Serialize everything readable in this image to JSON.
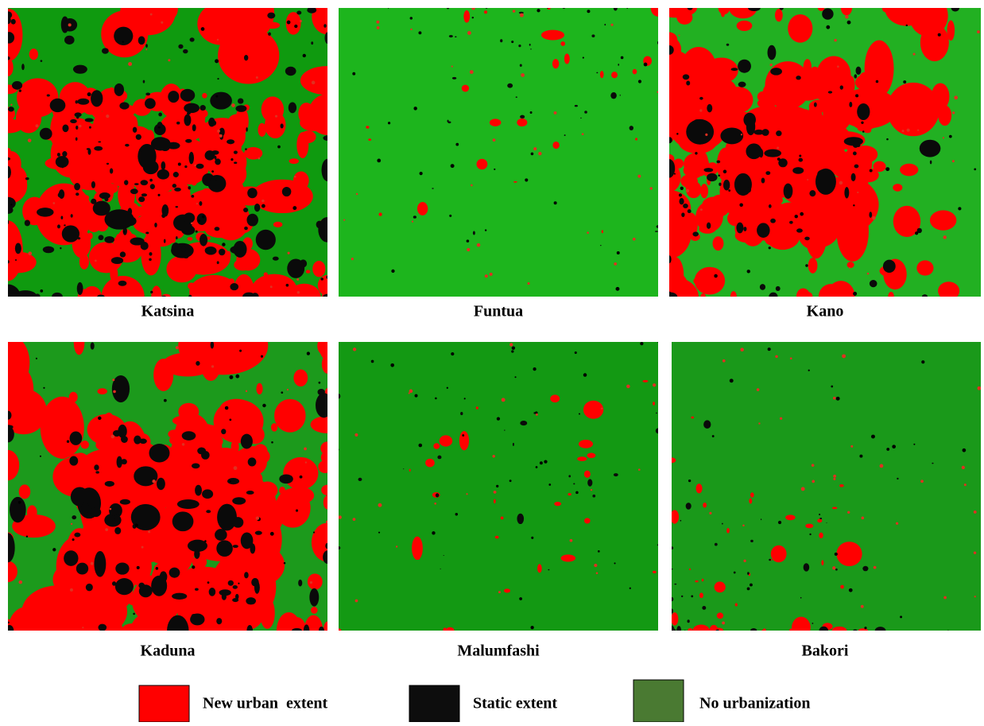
{
  "panels": [
    {
      "label": "Katsina"
    },
    {
      "label": "Funtua"
    },
    {
      "label": "Kano"
    },
    {
      "label": "Kaduna"
    },
    {
      "label": "Malumfashi"
    },
    {
      "label": "Bakori"
    }
  ],
  "legend": [
    {
      "label": "New urban  extent"
    },
    {
      "label": "Static extent"
    },
    {
      "label": "No urbanization"
    }
  ]
}
